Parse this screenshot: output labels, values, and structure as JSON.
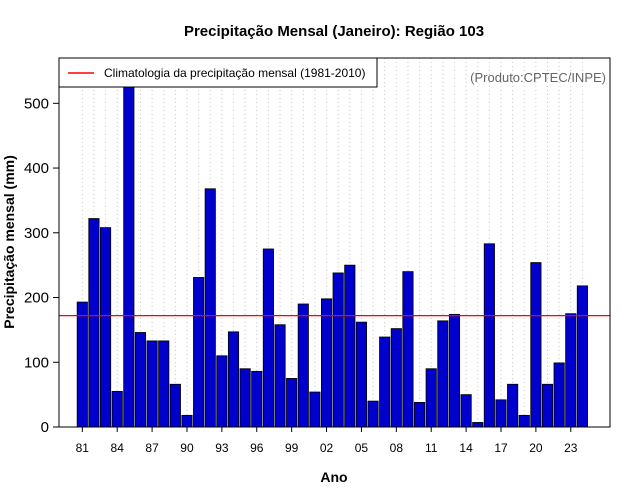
{
  "chart_data": {
    "type": "bar",
    "title": "Precipitação Mensal (Janeiro): Região 103",
    "xlabel": "Ano",
    "ylabel": "Precipitação mensal (mm)",
    "credit": "(Produto:CPTEC/INPE)",
    "ylim": [
      0,
      570
    ],
    "yticks": [
      0,
      100,
      200,
      300,
      400,
      500
    ],
    "ytick_labels": [
      "0",
      "100",
      "200",
      "300",
      "400",
      "500"
    ],
    "categories": [
      "1981",
      "1982",
      "1983",
      "1984",
      "1985",
      "1986",
      "1987",
      "1988",
      "1989",
      "1990",
      "1991",
      "1992",
      "1993",
      "1994",
      "1995",
      "1996",
      "1997",
      "1998",
      "1999",
      "2000",
      "2001",
      "2002",
      "2003",
      "2004",
      "2005",
      "2006",
      "2007",
      "2008",
      "2009",
      "2010",
      "2011",
      "2012",
      "2013",
      "2014",
      "2015",
      "2016",
      "2017",
      "2018",
      "2019",
      "2020",
      "2021",
      "2022",
      "2023",
      "2024"
    ],
    "xtick_labels": [
      {
        "index": 0,
        "label": "81"
      },
      {
        "index": 3,
        "label": "84"
      },
      {
        "index": 6,
        "label": "87"
      },
      {
        "index": 9,
        "label": "90"
      },
      {
        "index": 12,
        "label": "93"
      },
      {
        "index": 15,
        "label": "96"
      },
      {
        "index": 18,
        "label": "99"
      },
      {
        "index": 21,
        "label": "02"
      },
      {
        "index": 24,
        "label": "05"
      },
      {
        "index": 27,
        "label": "08"
      },
      {
        "index": 30,
        "label": "11"
      },
      {
        "index": 33,
        "label": "14"
      },
      {
        "index": 36,
        "label": "17"
      },
      {
        "index": 39,
        "label": "20"
      },
      {
        "index": 42,
        "label": "23"
      }
    ],
    "series": [
      {
        "name": "Precipitação mensal",
        "color": "#0000cc",
        "values": [
          193,
          322,
          308,
          55,
          541,
          146,
          133,
          133,
          66,
          18,
          231,
          368,
          110,
          147,
          90,
          86,
          275,
          158,
          75,
          190,
          54,
          198,
          238,
          250,
          162,
          40,
          139,
          152,
          240,
          38,
          90,
          164,
          174,
          50,
          7,
          283,
          42,
          66,
          18,
          254,
          66,
          99,
          175,
          218
        ]
      }
    ],
    "reference_line": {
      "label": "Climatologia da precipitação mensal (1981-2010)",
      "value": 172,
      "color": "#ff0000"
    },
    "legend_position": "top-left",
    "grid": "vertical dotted"
  }
}
